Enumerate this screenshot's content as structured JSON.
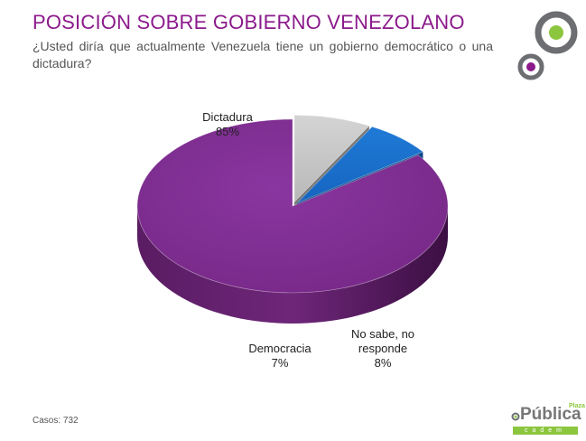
{
  "header": {
    "title": "POSICIÓN SOBRE GOBIERNO VENEZOLANO",
    "subtitle": "¿Usted diría que actualmente Venezuela tiene un gobierno democrático o una dictadura?"
  },
  "chart_data": {
    "type": "pie",
    "title": "POSICIÓN SOBRE GOBIERNO VENEZOLANO",
    "slices": [
      {
        "label": "Dictadura",
        "value": 85,
        "value_label": "85%",
        "color": "#7b2a86"
      },
      {
        "label": "No sabe, no responde",
        "value": 8,
        "value_label": "8%",
        "color": "#bdbdbd"
      },
      {
        "label": "Democracia",
        "value": 7,
        "value_label": "7%",
        "color": "#1565c0"
      }
    ]
  },
  "labels": {
    "dictadura": {
      "name": "Dictadura",
      "pct": "85%"
    },
    "nosabe": {
      "line1": "No sabe, no",
      "line2": "responde",
      "pct": "8%"
    },
    "democracia": {
      "name": "Democracia",
      "pct": "7%"
    }
  },
  "footer": {
    "cases": "Casos: 732",
    "brand": "Pública",
    "brand_plaza": "Plaza",
    "brand_sub": "cadem"
  },
  "colors": {
    "accent": "#8b1a8c",
    "logo_green": "#8cc63f",
    "logo_gray": "#6d6e71"
  }
}
